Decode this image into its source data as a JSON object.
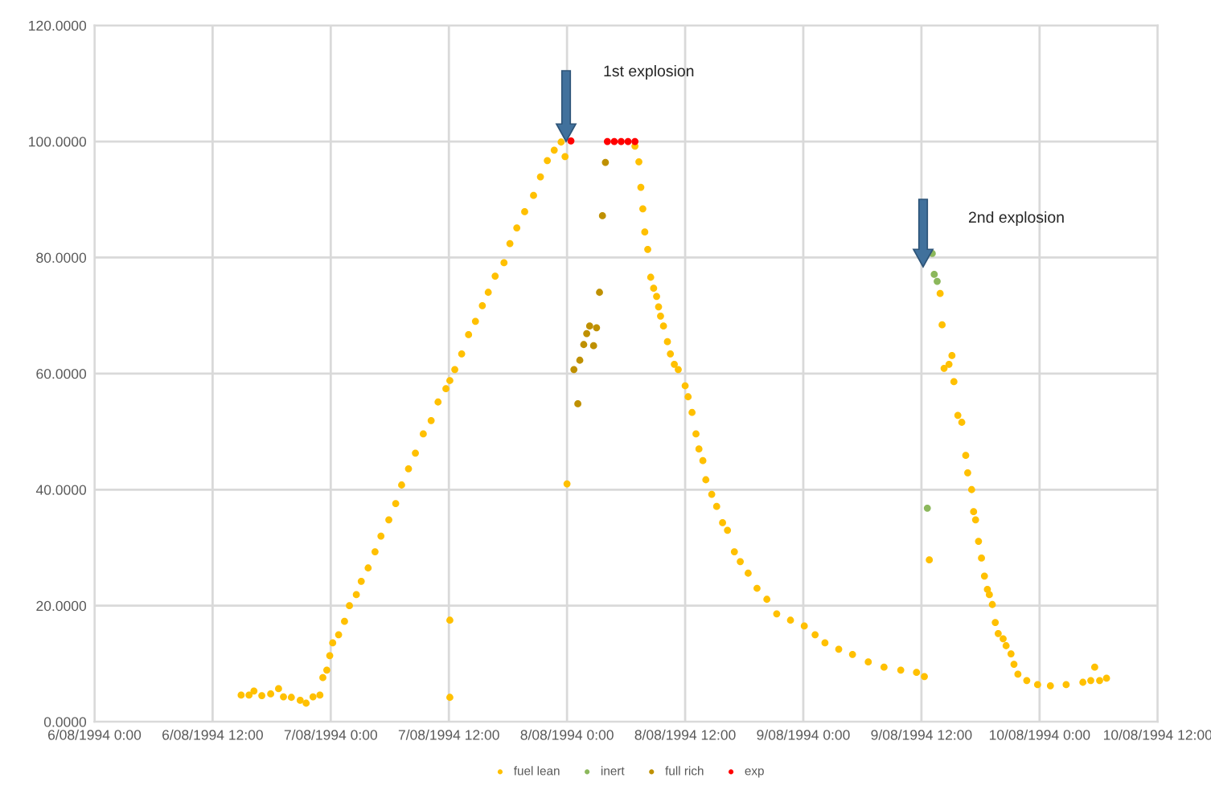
{
  "chart_data": {
    "type": "scatter",
    "xlim": [
      "1994-08-06T00:00",
      "1994-08-10T12:00"
    ],
    "xticks": [
      {
        "value": "1994-08-06T00:00",
        "label": "6/08/1994 0:00"
      },
      {
        "value": "1994-08-06T12:00",
        "label": "6/08/1994 12:00"
      },
      {
        "value": "1994-08-07T00:00",
        "label": "7/08/1994 0:00"
      },
      {
        "value": "1994-08-07T12:00",
        "label": "7/08/1994 12:00"
      },
      {
        "value": "1994-08-08T00:00",
        "label": "8/08/1994 0:00"
      },
      {
        "value": "1994-08-08T12:00",
        "label": "8/08/1994 12:00"
      },
      {
        "value": "1994-08-09T00:00",
        "label": "9/08/1994 0:00"
      },
      {
        "value": "1994-08-09T12:00",
        "label": "9/08/1994 12:00"
      },
      {
        "value": "1994-08-10T00:00",
        "label": "10/08/1994 0:00"
      },
      {
        "value": "1994-08-10T12:00",
        "label": "10/08/1994 12:00"
      }
    ],
    "ylim": [
      0,
      120
    ],
    "yticks": [
      {
        "value": 0,
        "label": "0.0000"
      },
      {
        "value": 20,
        "label": "20.0000"
      },
      {
        "value": 40,
        "label": "40.0000"
      },
      {
        "value": 60,
        "label": "60.0000"
      },
      {
        "value": 80,
        "label": "80.0000"
      },
      {
        "value": 100,
        "label": "100.0000"
      },
      {
        "value": 120,
        "label": "120.0000"
      }
    ],
    "grid": true,
    "legend": "bottom",
    "marker": "circle",
    "annotations": [
      "1st explosion",
      "2nd explosion"
    ],
    "series": [
      {
        "name": "fuel lean",
        "color": "#ffc000",
        "x": [
          "1994-08-06T14:54",
          "1994-08-06T15:42",
          "1994-08-06T16:12",
          "1994-08-06T17:00",
          "1994-08-06T17:54",
          "1994-08-06T18:42",
          "1994-08-06T19:12",
          "1994-08-06T20:00",
          "1994-08-06T20:54",
          "1994-08-06T21:30",
          "1994-08-06T22:12",
          "1994-08-06T22:54",
          "1994-08-06T23:12",
          "1994-08-06T23:36",
          "1994-08-06T23:54",
          "1994-08-07T00:12",
          "1994-08-07T00:48",
          "1994-08-07T01:24",
          "1994-08-07T01:54",
          "1994-08-07T02:36",
          "1994-08-07T03:06",
          "1994-08-07T03:48",
          "1994-08-07T04:30",
          "1994-08-07T05:06",
          "1994-08-07T05:54",
          "1994-08-07T06:36",
          "1994-08-07T07:12",
          "1994-08-07T07:54",
          "1994-08-07T08:36",
          "1994-08-07T09:24",
          "1994-08-07T10:12",
          "1994-08-07T10:54",
          "1994-08-07T11:42",
          "1994-08-07T12:06",
          "1994-08-07T12:06",
          "1994-08-07T12:06",
          "1994-08-07T12:36",
          "1994-08-07T13:18",
          "1994-08-07T14:00",
          "1994-08-07T14:42",
          "1994-08-07T15:24",
          "1994-08-07T16:00",
          "1994-08-07T16:42",
          "1994-08-07T17:36",
          "1994-08-07T18:12",
          "1994-08-07T18:54",
          "1994-08-07T19:42",
          "1994-08-07T20:36",
          "1994-08-07T21:18",
          "1994-08-07T22:00",
          "1994-08-07T22:42",
          "1994-08-07T23:24",
          "1994-08-07T23:48",
          "1994-08-08T00:00",
          "1994-08-08T06:54",
          "1994-08-08T07:18",
          "1994-08-08T07:30",
          "1994-08-08T07:42",
          "1994-08-08T07:54",
          "1994-08-08T08:12",
          "1994-08-08T08:30",
          "1994-08-08T08:48",
          "1994-08-08T09:06",
          "1994-08-08T09:18",
          "1994-08-08T09:30",
          "1994-08-08T09:48",
          "1994-08-08T10:12",
          "1994-08-08T10:30",
          "1994-08-08T10:54",
          "1994-08-08T11:18",
          "1994-08-08T12:00",
          "1994-08-08T12:18",
          "1994-08-08T12:42",
          "1994-08-08T13:06",
          "1994-08-08T13:24",
          "1994-08-08T13:48",
          "1994-08-08T14:06",
          "1994-08-08T14:42",
          "1994-08-08T15:12",
          "1994-08-08T15:48",
          "1994-08-08T16:18",
          "1994-08-08T17:00",
          "1994-08-08T17:36",
          "1994-08-08T18:24",
          "1994-08-08T19:18",
          "1994-08-08T20:18",
          "1994-08-08T21:18",
          "1994-08-08T22:42",
          "1994-08-09T00:06",
          "1994-08-09T01:12",
          "1994-08-09T02:12",
          "1994-08-09T03:36",
          "1994-08-09T05:00",
          "1994-08-09T06:36",
          "1994-08-09T08:12",
          "1994-08-09T09:54",
          "1994-08-09T11:30",
          "1994-08-09T12:18",
          "1994-08-09T12:48",
          "1994-08-09T13:54",
          "1994-08-09T14:06",
          "1994-08-09T14:18",
          "1994-08-09T14:48",
          "1994-08-09T15:06",
          "1994-08-09T15:18",
          "1994-08-09T15:42",
          "1994-08-09T16:06",
          "1994-08-09T16:30",
          "1994-08-09T16:42",
          "1994-08-09T17:06",
          "1994-08-09T17:18",
          "1994-08-09T17:30",
          "1994-08-09T17:48",
          "1994-08-09T18:06",
          "1994-08-09T18:24",
          "1994-08-09T18:42",
          "1994-08-09T18:54",
          "1994-08-09T19:12",
          "1994-08-09T19:30",
          "1994-08-09T19:48",
          "1994-08-09T20:18",
          "1994-08-09T20:36",
          "1994-08-09T21:06",
          "1994-08-09T21:24",
          "1994-08-09T21:48",
          "1994-08-09T22:42",
          "1994-08-09T23:48",
          "1994-08-10T01:06",
          "1994-08-10T02:42",
          "1994-08-10T04:24",
          "1994-08-10T05:12",
          "1994-08-10T05:36",
          "1994-08-10T06:06",
          "1994-08-10T06:48"
        ],
        "values": [
          4.6,
          4.6,
          5.3,
          4.5,
          4.8,
          5.7,
          4.3,
          4.2,
          3.7,
          3.2,
          4.3,
          4.6,
          7.6,
          8.9,
          11.4,
          13.6,
          15.0,
          17.3,
          20.0,
          21.9,
          24.2,
          26.5,
          29.3,
          32.0,
          34.8,
          37.6,
          40.8,
          43.6,
          46.3,
          49.6,
          51.9,
          55.1,
          57.4,
          58.8,
          17.5,
          4.2,
          60.7,
          63.4,
          66.7,
          69.0,
          71.7,
          74.0,
          76.8,
          79.1,
          82.4,
          85.1,
          87.9,
          90.7,
          93.9,
          96.7,
          98.5,
          99.9,
          97.4,
          41.0,
          99.2,
          96.5,
          92.1,
          88.4,
          84.4,
          81.4,
          76.6,
          74.7,
          73.3,
          71.5,
          69.9,
          68.2,
          65.5,
          63.4,
          61.6,
          60.7,
          57.9,
          56.0,
          53.3,
          49.6,
          47.0,
          45.0,
          41.7,
          39.2,
          37.1,
          34.3,
          33.0,
          29.3,
          27.6,
          25.6,
          23.0,
          21.1,
          18.6,
          17.5,
          16.5,
          15.0,
          13.6,
          12.5,
          11.6,
          10.3,
          9.4,
          8.9,
          8.5,
          7.8,
          27.9,
          73.8,
          68.4,
          60.9,
          61.6,
          63.1,
          58.6,
          52.8,
          51.6,
          45.9,
          42.9,
          40.0,
          36.2,
          34.8,
          31.1,
          28.2,
          25.1,
          22.8,
          21.9,
          20.2,
          17.1,
          15.2,
          14.3,
          13.1,
          11.7,
          9.9,
          8.2,
          7.1,
          6.4,
          6.2,
          6.4,
          6.8,
          7.1,
          9.4,
          7.1,
          7.5
        ]
      },
      {
        "name": "inert",
        "color": "#8cb85c",
        "x": [
          "1994-08-09T12:36",
          "1994-08-09T13:06",
          "1994-08-09T13:18",
          "1994-08-09T13:36"
        ],
        "values": [
          36.8,
          80.7,
          77.1,
          75.9
        ]
      },
      {
        "name": "full rich",
        "color": "#bf9000",
        "x": [
          "1994-08-08T00:42",
          "1994-08-08T01:06",
          "1994-08-08T01:18",
          "1994-08-08T01:42",
          "1994-08-08T02:00",
          "1994-08-08T02:18",
          "1994-08-08T02:42",
          "1994-08-08T03:00",
          "1994-08-08T03:18",
          "1994-08-08T03:36",
          "1994-08-08T03:54"
        ],
        "values": [
          60.7,
          54.8,
          62.3,
          65.0,
          66.9,
          68.2,
          64.8,
          67.9,
          74.0,
          87.2,
          96.4
        ]
      },
      {
        "name": "exp",
        "color": "#ff0000",
        "x": [
          "1994-08-08T00:24",
          "1994-08-08T04:06",
          "1994-08-08T04:48",
          "1994-08-08T05:30",
          "1994-08-08T06:12",
          "1994-08-08T06:54"
        ],
        "values": [
          100.1,
          100,
          100,
          100,
          100,
          100
        ]
      }
    ]
  }
}
